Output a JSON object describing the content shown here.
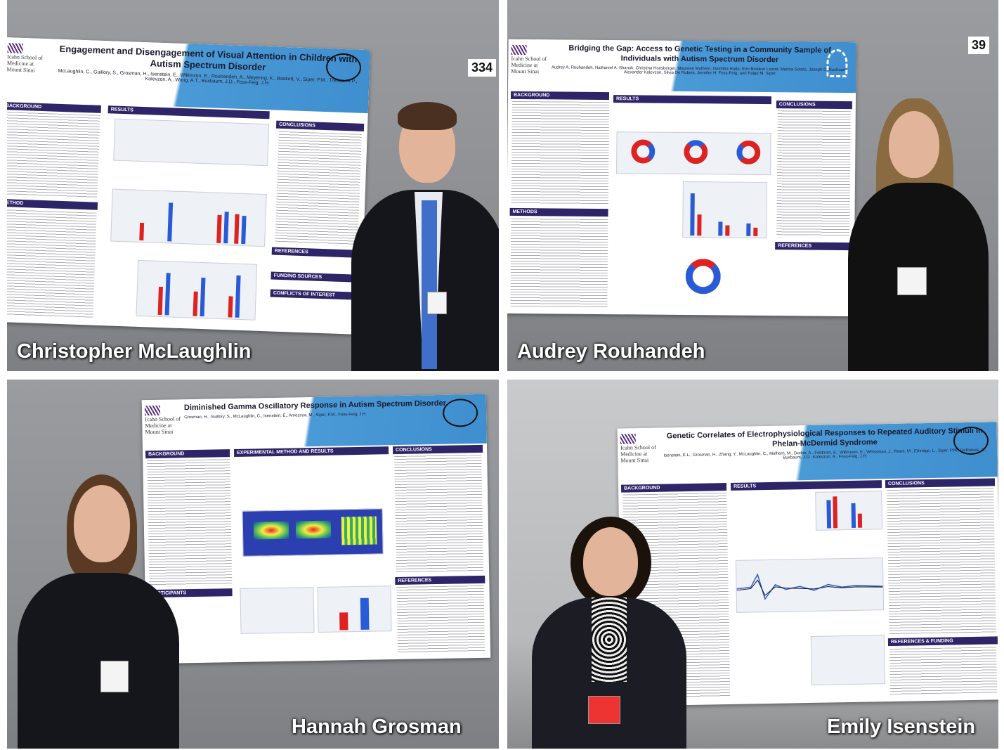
{
  "panels": [
    {
      "caption": "Christopher McLaughlin",
      "board_number": "334",
      "poster": {
        "institution_logo": "Icahn School of Medicine at Mount Sinai",
        "title": "Engagement and Disengagement of Visual Attention in Children with Autism Spectrum Disorder",
        "authors": "McLaughlin, C., Guillory, S., Grosman, H., Isenstein, E., Wilkinson, E., Rouhandeh, A., Meyering, K., Baskett, V., Siper, P.M., Trelles, M.P., Kolevzon, A., Wang, A.T., Buxbaum, J.D., Foss-Feig, J.H.",
        "sections": [
          "BACKGROUND",
          "RESULTS",
          "CONCLUSIONS",
          "METHOD",
          "REFERENCES",
          "FUNDING SOURCES",
          "CONFLICTS OF INTEREST"
        ]
      }
    },
    {
      "caption": "Audrey Rouhandeh",
      "board_number": "39",
      "poster": {
        "institution_logo": "Icahn School of Medicine at Mount Sinai",
        "title": "Bridging the Gap: Access to Genetic Testing in a Community Sample of Individuals with Autism Spectrum Disorder",
        "authors": "Audrey A. Rouhandeh, Nathaniel A. Shanok, Christina Honsberger, Maureen Mulhern, Nashiha Huda, Erin Brooker Lozott, Marina Sotelo, Joseph D. Buxbaum, Alexander Kolevzon, Silvia De Rubeis, Jennifer H. Foss-Feig, and Paige M. Siper",
        "sections": [
          "BACKGROUND",
          "RESULTS",
          "CONCLUSIONS",
          "METHODS",
          "REFERENCES"
        ]
      }
    },
    {
      "caption": "Hannah Grosman",
      "poster": {
        "institution_logo": "Icahn School of Medicine at Mount Sinai",
        "title": "Diminished Gamma Oscillatory Response in Autism Spectrum Disorder",
        "authors": "Grosman, H., Guillory, S., McLaughlin, C., Isenstein, E., Amezcua, M., Siper, P.M., Foss-Feig, J.H.",
        "sections": [
          "BACKGROUND",
          "EXPERIMENTAL METHOD AND RESULTS",
          "CONCLUSIONS",
          "PARTICIPANTS",
          "REFERENCES"
        ]
      }
    },
    {
      "caption": "Emily Isenstein",
      "poster": {
        "institution_logo": "Icahn School of Medicine at Mount Sinai",
        "title": "Genetic Correlates of Electrophysiological Responses to Repeated Auditory Stimuli in Phelan-McDermid Syndrome",
        "authors": "Isenstein, E.L., Grosman, H., Zhang, Y., McLaughlin, C., Mulhern, M., Durkin, A., Feldman, E., Wilkinson, E., Weissman, J., Rowe, M., Ethridge, L., Siper, P.M., DeRubeis, S., Buxbaum, J.D., Kolevzon, A., Foss-Feig, J.H.",
        "sections": [
          "BACKGROUND",
          "RESULTS",
          "CONCLUSIONS",
          "REFERENCES & FUNDING"
        ]
      }
    }
  ]
}
